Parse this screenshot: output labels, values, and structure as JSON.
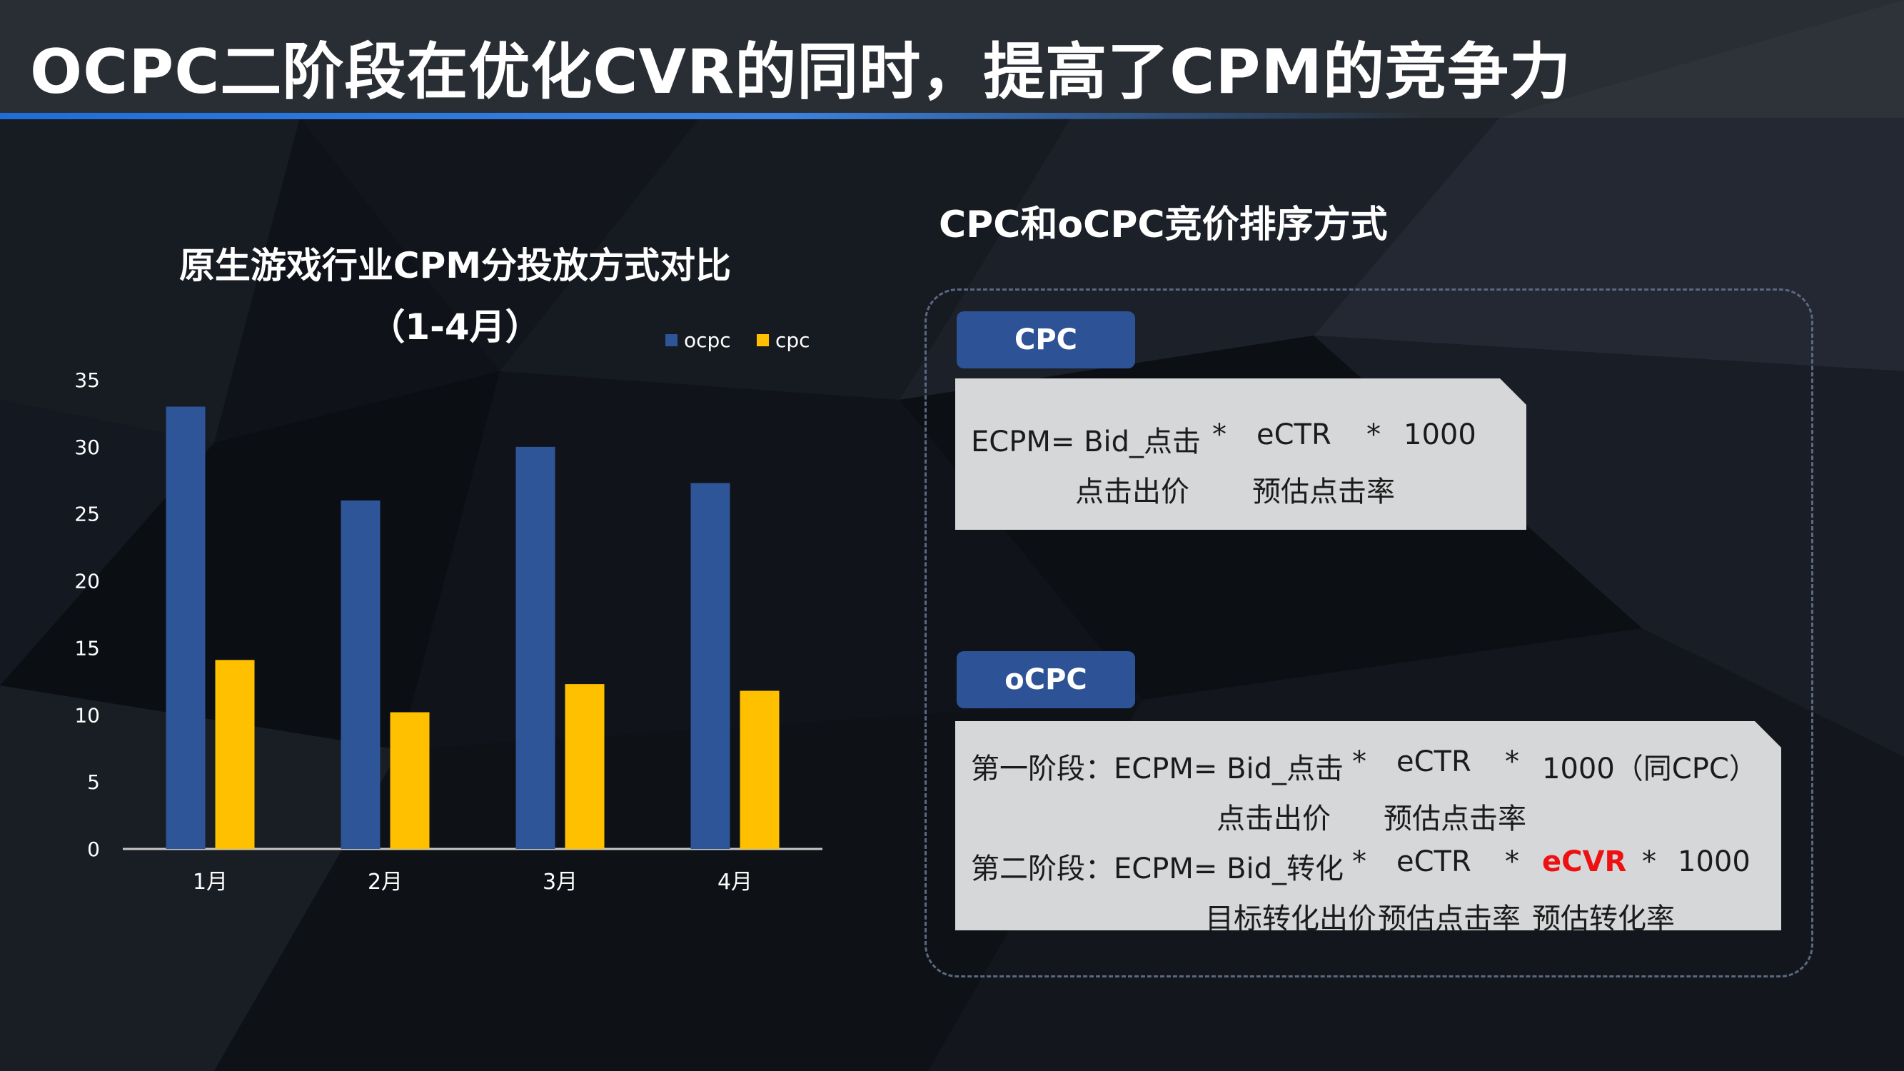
{
  "page": {
    "title": "OCPC二阶段在优化CVR的同时，提高了CPM的竞争力"
  },
  "chart_data": {
    "type": "bar",
    "title": "原生游戏行业CPM分投放方式对比",
    "subtitle": "（1-4月）",
    "categories": [
      "1月",
      "2月",
      "3月",
      "4月"
    ],
    "series": [
      {
        "name": "ocpc",
        "values": [
          33,
          26,
          30,
          27.3
        ],
        "color": "#2e5597"
      },
      {
        "name": "cpc",
        "values": [
          14.1,
          10.2,
          12.3,
          11.8
        ],
        "color": "#ffc000"
      }
    ],
    "ylim": [
      0,
      35
    ],
    "yticks": [
      0,
      5,
      10,
      15,
      20,
      25,
      30,
      35
    ],
    "xlabel": "",
    "ylabel": "",
    "grid": false,
    "legend": "top-right"
  },
  "right": {
    "heading": "CPC和oCPC竞价排序方式",
    "cpc": {
      "tag": "CPC",
      "line1": {
        "lhs": "ECPM= Bid_点击",
        "op1": "*",
        "t1": "eCTR",
        "op2": "*",
        "t2": "1000"
      },
      "line2": {
        "a": "点击出价",
        "b": "预估点击率"
      }
    },
    "ocpc": {
      "tag": "oCPC",
      "stage1": {
        "lhs": "第一阶段：ECPM= Bid_点击",
        "op1": "*",
        "t1": "eCTR",
        "op2": "*",
        "t2": "1000（同CPC）"
      },
      "stage1_sub": {
        "a": "点击出价",
        "b": "预估点击率"
      },
      "stage2": {
        "lhs": "第二阶段：ECPM= Bid_转化",
        "op1": "*",
        "t1": "eCTR",
        "op2": "*",
        "t2": "eCVR",
        "op3": "*",
        "t3": "1000"
      },
      "stage2_sub": {
        "a": "目标转化出价",
        "b": "预估点击率",
        "c": "预估转化率"
      }
    }
  },
  "colors": {
    "accent_blue": "#2e5597",
    "accent_yellow": "#ffc000",
    "highlight_red": "#ee1111",
    "tag_blue": "#2d5296"
  }
}
